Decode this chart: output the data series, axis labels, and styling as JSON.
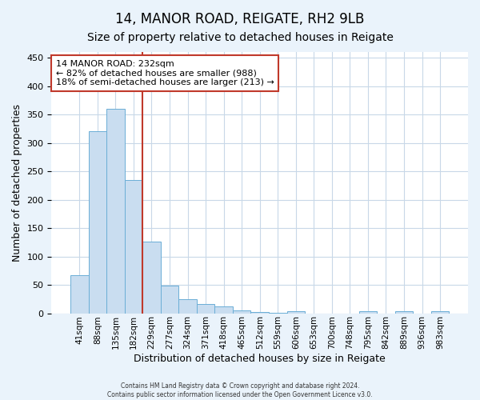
{
  "title": "14, MANOR ROAD, REIGATE, RH2 9LB",
  "subtitle": "Size of property relative to detached houses in Reigate",
  "xlabel": "Distribution of detached houses by size in Reigate",
  "ylabel": "Number of detached properties",
  "categories": [
    "41sqm",
    "88sqm",
    "135sqm",
    "182sqm",
    "229sqm",
    "277sqm",
    "324sqm",
    "371sqm",
    "418sqm",
    "465sqm",
    "512sqm",
    "559sqm",
    "606sqm",
    "653sqm",
    "700sqm",
    "748sqm",
    "795sqm",
    "842sqm",
    "889sqm",
    "936sqm",
    "983sqm"
  ],
  "values": [
    67,
    320,
    360,
    235,
    126,
    49,
    25,
    16,
    12,
    5,
    2,
    1,
    4,
    0,
    0,
    0,
    3,
    0,
    4,
    0,
    3
  ],
  "bar_color": "#c9ddf0",
  "bar_edge_color": "#6baed6",
  "property_line_index": 4,
  "property_line_color": "#c0392b",
  "annotation_text": "14 MANOR ROAD: 232sqm\n← 82% of detached houses are smaller (988)\n18% of semi-detached houses are larger (213) →",
  "annotation_box_edgecolor": "#c0392b",
  "annotation_box_facecolor": "#ffffff",
  "ylim": [
    0,
    460
  ],
  "yticks": [
    0,
    50,
    100,
    150,
    200,
    250,
    300,
    350,
    400,
    450
  ],
  "grid_color": "#c8d8e8",
  "plot_bg_color": "#ffffff",
  "fig_bg_color": "#eaf3fb",
  "title_fontsize": 12,
  "subtitle_fontsize": 10,
  "footer_line1": "Contains HM Land Registry data © Crown copyright and database right 2024.",
  "footer_line2": "Contains public sector information licensed under the Open Government Licence v3.0."
}
